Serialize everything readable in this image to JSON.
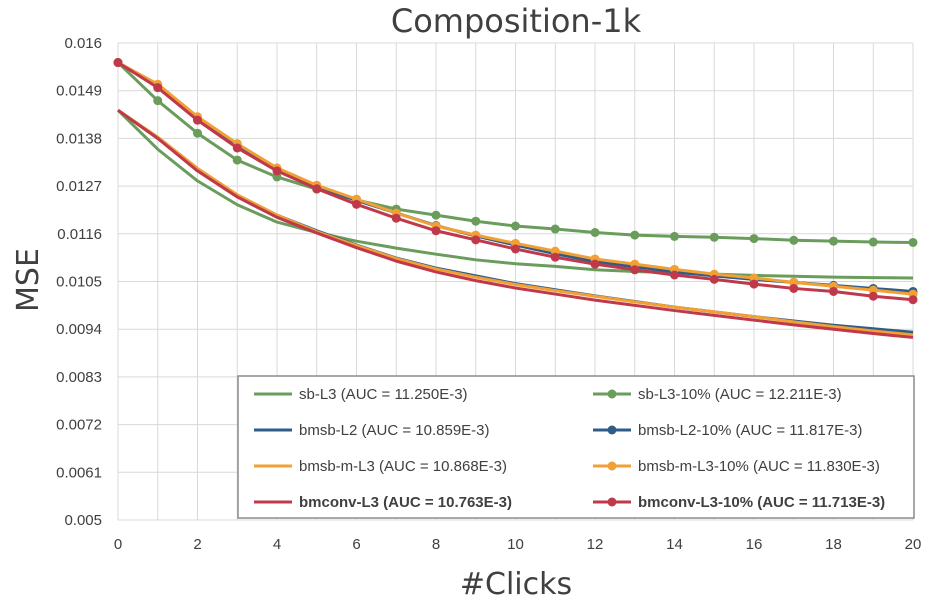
{
  "chart_data": {
    "type": "line",
    "title": "Composition-1k",
    "xlabel": "#Clicks",
    "ylabel": "MSE",
    "xlim": [
      0,
      20
    ],
    "ylim": [
      0.005,
      0.016
    ],
    "x": [
      0,
      1,
      2,
      3,
      4,
      5,
      6,
      7,
      8,
      9,
      10,
      11,
      12,
      13,
      14,
      15,
      16,
      17,
      18,
      19,
      20
    ],
    "x_ticks": [
      0,
      2,
      4,
      6,
      8,
      10,
      12,
      14,
      16,
      18,
      20
    ],
    "y_ticks": [
      {
        "value": 0.005,
        "label": "0.005"
      },
      {
        "value": 0.0061,
        "label": "0.0061"
      },
      {
        "value": 0.0072,
        "label": "0.0072"
      },
      {
        "value": 0.0083,
        "label": "0.0083"
      },
      {
        "value": 0.0094,
        "label": "0.0094"
      },
      {
        "value": 0.0105,
        "label": "0.0105"
      },
      {
        "value": 0.0116,
        "label": "0.0116"
      },
      {
        "value": 0.0127,
        "label": "0.0127"
      },
      {
        "value": 0.0138,
        "label": "0.0138"
      },
      {
        "value": 0.0149,
        "label": "0.0149"
      },
      {
        "value": 0.016,
        "label": "0.016"
      }
    ],
    "grid": {
      "vertical": true,
      "horizontal": true
    },
    "legend_position": "bottom-right",
    "series": [
      {
        "name": "sb-L3 (AUC = 11.250E-3)",
        "color": "#6a9c5c",
        "markers": false,
        "bold": false,
        "values": [
          0.01445,
          0.01355,
          0.01282,
          0.01227,
          0.01187,
          0.01163,
          0.01143,
          0.01127,
          0.01113,
          0.011,
          0.01091,
          0.01085,
          0.01077,
          0.01073,
          0.0107,
          0.01067,
          0.01064,
          0.01062,
          0.0106,
          0.01059,
          0.01058
        ]
      },
      {
        "name": "sb-L3-10% (AUC = 12.211E-3)",
        "color": "#6a9c5c",
        "markers": true,
        "bold": false,
        "values": [
          0.01555,
          0.01467,
          0.01392,
          0.0133,
          0.01291,
          0.01263,
          0.01238,
          0.01217,
          0.01203,
          0.01189,
          0.01178,
          0.01171,
          0.01163,
          0.01157,
          0.01154,
          0.01152,
          0.01149,
          0.01145,
          0.01143,
          0.01141,
          0.0114
        ]
      },
      {
        "name": "bmsb-L2 (AUC = 10.859E-3)",
        "color": "#2f5d8a",
        "markers": false,
        "bold": false,
        "values": [
          0.01445,
          0.0138,
          0.01309,
          0.01249,
          0.01203,
          0.01167,
          0.01134,
          0.01104,
          0.01081,
          0.01063,
          0.01045,
          0.01031,
          0.01017,
          0.01004,
          0.00991,
          0.0098,
          0.00969,
          0.00959,
          0.00949,
          0.00941,
          0.00933
        ]
      },
      {
        "name": "bmsb-L2-10% (AUC = 11.817E-3)",
        "color": "#2f5d8a",
        "markers": true,
        "bold": false,
        "values": [
          0.01555,
          0.015,
          0.01425,
          0.01365,
          0.0131,
          0.0127,
          0.01237,
          0.01208,
          0.01179,
          0.01155,
          0.01134,
          0.01114,
          0.01096,
          0.01084,
          0.01072,
          0.01063,
          0.01055,
          0.01048,
          0.01041,
          0.01034,
          0.01027
        ]
      },
      {
        "name": "bmsb-m-L3 (AUC = 10.868E-3)",
        "color": "#f0a034",
        "markers": false,
        "bold": false,
        "values": [
          0.01445,
          0.01383,
          0.01311,
          0.0125,
          0.01203,
          0.01165,
          0.01133,
          0.01103,
          0.01079,
          0.0106,
          0.01043,
          0.01029,
          0.01016,
          0.01003,
          0.00991,
          0.0098,
          0.00969,
          0.00957,
          0.00946,
          0.00936,
          0.00927
        ]
      },
      {
        "name": "bmsb-m-L3-10% (AUC = 11.830E-3)",
        "color": "#f0a034",
        "markers": true,
        "bold": false,
        "values": [
          0.01555,
          0.01505,
          0.0143,
          0.01368,
          0.01312,
          0.01272,
          0.0124,
          0.01208,
          0.01178,
          0.01157,
          0.01138,
          0.0112,
          0.01102,
          0.0109,
          0.01078,
          0.01067,
          0.01058,
          0.01048,
          0.01039,
          0.0103,
          0.01021
        ]
      },
      {
        "name": "bmconv-L3 (AUC = 10.763E-3)",
        "color": "#c0394b",
        "markers": false,
        "bold": true,
        "values": [
          0.01445,
          0.0138,
          0.01305,
          0.01245,
          0.01198,
          0.01162,
          0.01128,
          0.01097,
          0.01072,
          0.01052,
          0.01035,
          0.01021,
          0.01007,
          0.00995,
          0.00983,
          0.00972,
          0.00961,
          0.0095,
          0.0094,
          0.0093,
          0.00921
        ]
      },
      {
        "name": "bmconv-L3-10% (AUC = 11.713E-3)",
        "color": "#c0394b",
        "markers": true,
        "bold": true,
        "values": [
          0.01555,
          0.01497,
          0.01422,
          0.01358,
          0.01305,
          0.01264,
          0.01228,
          0.01196,
          0.01167,
          0.01146,
          0.01125,
          0.01106,
          0.0109,
          0.01077,
          0.01065,
          0.01055,
          0.01044,
          0.01034,
          0.01027,
          0.01016,
          0.01008
        ]
      }
    ],
    "legend_order": [
      0,
      1,
      2,
      3,
      4,
      5,
      6,
      7
    ]
  }
}
